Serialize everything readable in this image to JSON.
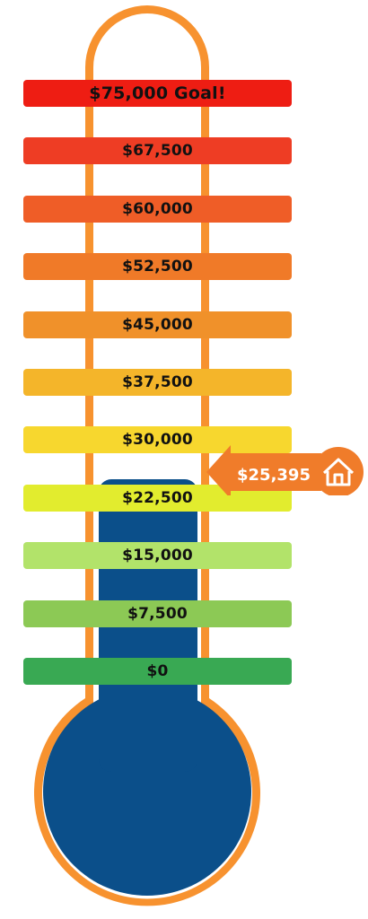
{
  "goal": 75000,
  "raised": 25395,
  "raised_label": "$25,395",
  "icons": {
    "marker_icon": "house-icon"
  },
  "colors": {
    "outline": "#f7922f",
    "fill": "#0b4f8a"
  },
  "levels": [
    {
      "label": "$75,000 Goal!",
      "value": 75000,
      "color": "#ee1d13"
    },
    {
      "label": "$67,500",
      "value": 67500,
      "color": "#ee3d24"
    },
    {
      "label": "$60,000",
      "value": 60000,
      "color": "#ef5d27"
    },
    {
      "label": "$52,500",
      "value": 52500,
      "color": "#f07a28"
    },
    {
      "label": "$45,000",
      "value": 45000,
      "color": "#f0912a"
    },
    {
      "label": "$37,500",
      "value": 37500,
      "color": "#f4b52a"
    },
    {
      "label": "$30,000",
      "value": 30000,
      "color": "#f7d72e"
    },
    {
      "label": "$22,500",
      "value": 22500,
      "color": "#e2ec2e"
    },
    {
      "label": "$15,000",
      "value": 15000,
      "color": "#b2e36a"
    },
    {
      "label": "$7,500",
      "value": 7500,
      "color": "#8cc955"
    },
    {
      "label": "$0",
      "value": 0,
      "color": "#39a953"
    }
  ]
}
